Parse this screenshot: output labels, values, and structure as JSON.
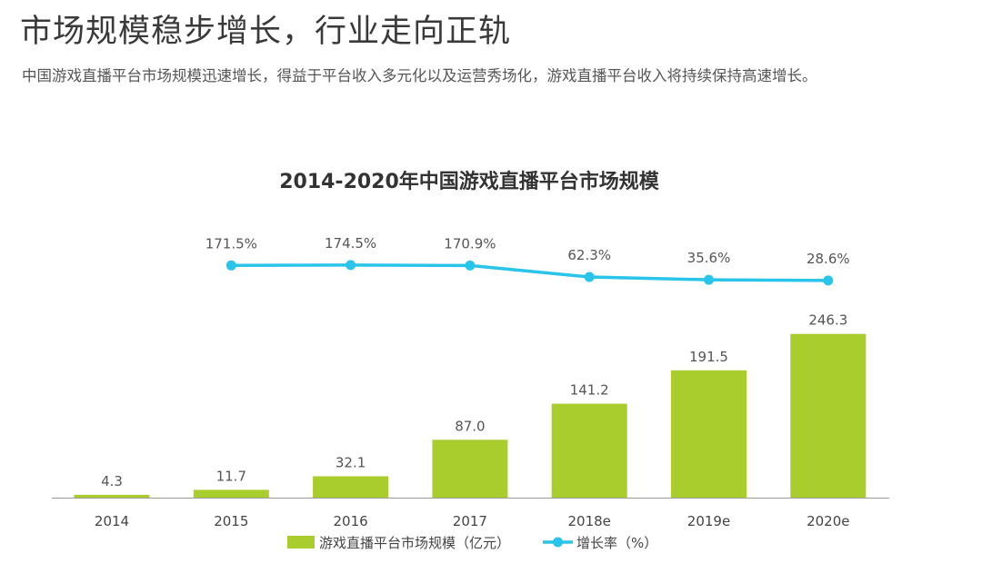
{
  "header": {
    "headline": "市场规模稳步增长，行业走向正轨",
    "subline": "中国游戏直播平台市场规模迅速增长，得益于平台收入多元化以及运营秀场化，游戏直播平台收入将持续保持高速增长。"
  },
  "chart_data": {
    "type": "bar",
    "title": "2014-2020年中国游戏直播平台市场规模",
    "categories": [
      "2014",
      "2015",
      "2016",
      "2017",
      "2018e",
      "2019e",
      "2020e"
    ],
    "series": [
      {
        "name": "游戏直播平台市场规模（亿元）",
        "kind": "bar",
        "color": "#a9cd2c",
        "values": [
          4.3,
          11.7,
          32.1,
          87.0,
          141.2,
          191.5,
          246.3
        ],
        "labels": [
          "4.3",
          "11.7",
          "32.1",
          "87.0",
          "141.2",
          "191.5",
          "246.3"
        ]
      },
      {
        "name": "增长率（%）",
        "kind": "line",
        "color": "#29c4ea",
        "values": [
          null,
          171.5,
          174.5,
          170.9,
          62.3,
          35.6,
          28.6
        ],
        "labels": [
          "",
          "171.5%",
          "174.5%",
          "170.9%",
          "62.3%",
          "35.6%",
          "28.6%"
        ]
      }
    ],
    "ylim": [
      0,
      250
    ],
    "grid": false,
    "legend_position": "bottom-center"
  }
}
